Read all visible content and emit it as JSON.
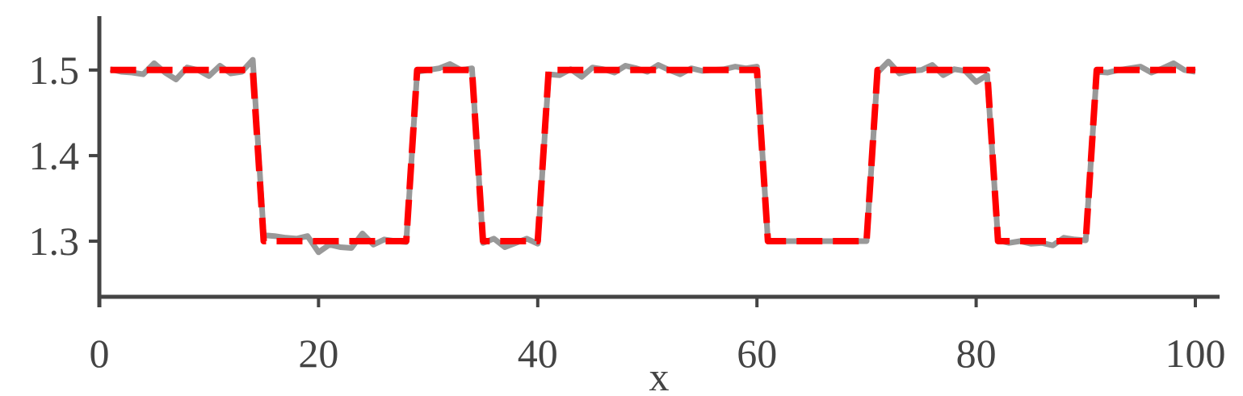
{
  "chart_data": {
    "type": "line",
    "title": "",
    "xlabel": "x",
    "ylabel": "",
    "xlim": [
      0,
      100
    ],
    "ylim": [
      1.235,
      1.563
    ],
    "xticks": [
      0,
      20,
      40,
      60,
      80,
      100
    ],
    "xtick_labels": [
      "0",
      "20",
      "40",
      "60",
      "80",
      "100"
    ],
    "yticks": [
      1.3,
      1.4,
      1.5
    ],
    "ytick_labels": [
      "1.3",
      "1.4",
      "1.5"
    ],
    "grid": false,
    "legend": "none",
    "series": [
      {
        "color": "#999999",
        "style": "solid",
        "x": [
          1,
          2,
          3,
          4,
          5,
          6,
          7,
          8,
          9,
          10,
          11,
          12,
          13,
          14,
          15,
          16,
          17,
          18,
          19,
          20,
          21,
          22,
          23,
          24,
          25,
          26,
          27,
          28,
          29,
          30,
          31,
          32,
          33,
          34,
          35,
          36,
          37,
          38,
          39,
          40,
          41,
          42,
          43,
          44,
          45,
          46,
          47,
          48,
          49,
          50,
          51,
          52,
          53,
          54,
          55,
          56,
          57,
          58,
          59,
          60,
          61,
          62,
          63,
          64,
          65,
          66,
          67,
          68,
          69,
          70,
          71,
          72,
          73,
          74,
          75,
          76,
          77,
          78,
          79,
          80,
          81,
          82,
          83,
          84,
          85,
          86,
          87,
          88,
          89,
          90,
          91,
          92,
          93,
          94,
          95,
          96,
          97,
          98,
          99,
          100
        ],
        "y": [
          1.501,
          1.498,
          1.497,
          1.495,
          1.508,
          1.497,
          1.489,
          1.503,
          1.5,
          1.493,
          1.505,
          1.496,
          1.498,
          1.512,
          1.307,
          1.306,
          1.304,
          1.303,
          1.306,
          1.287,
          1.296,
          1.293,
          1.292,
          1.309,
          1.296,
          1.302,
          1.3,
          1.299,
          1.498,
          1.5,
          1.502,
          1.507,
          1.5,
          1.502,
          1.298,
          1.303,
          1.293,
          1.298,
          1.303,
          1.297,
          1.495,
          1.494,
          1.501,
          1.492,
          1.503,
          1.501,
          1.497,
          1.505,
          1.502,
          1.498,
          1.506,
          1.5,
          1.495,
          1.502,
          1.499,
          1.5,
          1.501,
          1.504,
          1.502,
          1.504,
          1.3,
          1.3,
          1.3,
          1.3,
          1.3,
          1.3,
          1.3,
          1.3,
          1.3,
          1.3,
          1.497,
          1.51,
          1.496,
          1.499,
          1.5,
          1.506,
          1.494,
          1.501,
          1.499,
          1.486,
          1.494,
          1.301,
          1.298,
          1.3,
          1.297,
          1.298,
          1.295,
          1.304,
          1.302,
          1.301,
          1.498,
          1.497,
          1.5,
          1.502,
          1.504,
          1.497,
          1.502,
          1.508,
          1.5,
          1.498
        ]
      },
      {
        "color": "#ff0000",
        "style": "dashed",
        "x": [
          1,
          14,
          15,
          28,
          29,
          34,
          35,
          40,
          41,
          60,
          61,
          70,
          71,
          81,
          82,
          90,
          91,
          100
        ],
        "y": [
          1.5,
          1.5,
          1.3,
          1.3,
          1.5,
          1.5,
          1.3,
          1.3,
          1.5,
          1.5,
          1.3,
          1.3,
          1.5,
          1.5,
          1.3,
          1.3,
          1.5,
          1.5
        ]
      }
    ]
  }
}
